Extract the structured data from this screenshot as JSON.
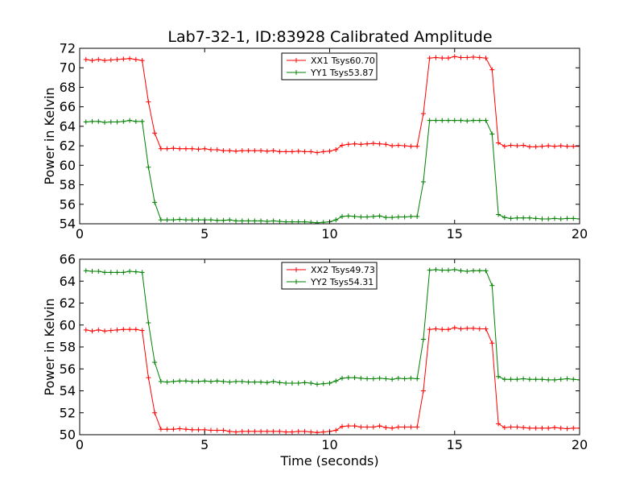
{
  "figure": {
    "title": "Lab7-32-1, ID:83928 Calibrated Amplitude"
  },
  "chart_data": [
    {
      "type": "line",
      "title": "Lab7-32-1, ID:83928 Calibrated Amplitude",
      "xlabel": "",
      "ylabel": "Power in Kelvin",
      "xlim": [
        0,
        20
      ],
      "ylim": [
        54,
        72
      ],
      "xticks": [
        0,
        5,
        10,
        15,
        20
      ],
      "yticks": [
        54,
        56,
        58,
        60,
        62,
        64,
        66,
        68,
        70,
        72
      ],
      "grid": false,
      "legend_position": "top-center",
      "x": [
        0.25,
        0.5,
        0.75,
        1.0,
        1.25,
        1.5,
        1.75,
        2.0,
        2.25,
        2.5,
        2.75,
        3.0,
        3.25,
        3.5,
        3.75,
        4.0,
        4.25,
        4.5,
        4.75,
        5.0,
        5.25,
        5.5,
        5.75,
        6.0,
        6.25,
        6.5,
        6.75,
        7.0,
        7.25,
        7.5,
        7.75,
        8.0,
        8.25,
        8.5,
        8.75,
        9.0,
        9.25,
        9.5,
        9.75,
        10.0,
        10.25,
        10.5,
        10.75,
        11.0,
        11.25,
        11.5,
        11.75,
        12.0,
        12.25,
        12.5,
        12.75,
        13.0,
        13.25,
        13.5,
        13.75,
        14.0,
        14.25,
        14.5,
        14.75,
        15.0,
        15.25,
        15.5,
        15.75,
        16.0,
        16.25,
        16.5,
        16.75,
        17.0,
        17.25,
        17.5,
        17.75,
        18.0,
        18.25,
        18.5,
        18.75,
        19.0,
        19.25,
        19.5,
        19.75,
        20.0
      ],
      "series": [
        {
          "name": "XX1 Tsys60.70",
          "color": "#ff0000",
          "values": [
            70.85,
            70.75,
            70.85,
            70.75,
            70.8,
            70.85,
            70.9,
            70.95,
            70.85,
            70.75,
            66.5,
            63.3,
            61.7,
            61.7,
            61.75,
            61.7,
            61.7,
            61.7,
            61.65,
            61.7,
            61.6,
            61.6,
            61.5,
            61.5,
            61.45,
            61.5,
            61.5,
            61.5,
            61.5,
            61.45,
            61.5,
            61.4,
            61.4,
            61.4,
            61.45,
            61.4,
            61.4,
            61.3,
            61.4,
            61.45,
            61.6,
            62.05,
            62.15,
            62.2,
            62.15,
            62.2,
            62.25,
            62.2,
            62.15,
            62.0,
            62.05,
            62.0,
            61.95,
            61.95,
            65.3,
            71.0,
            71.05,
            71.0,
            71.0,
            71.15,
            71.05,
            71.05,
            71.1,
            71.05,
            71.0,
            69.8,
            62.3,
            61.95,
            62.05,
            62.0,
            62.05,
            61.9,
            61.9,
            61.95,
            62.0,
            61.95,
            62.0,
            61.95,
            61.95,
            61.95
          ]
        },
        {
          "name": "YY1 Tsys53.87",
          "color": "#008000",
          "values": [
            64.45,
            64.5,
            64.5,
            64.4,
            64.45,
            64.45,
            64.5,
            64.6,
            64.5,
            64.5,
            59.8,
            56.2,
            54.4,
            54.4,
            54.4,
            54.45,
            54.4,
            54.4,
            54.4,
            54.4,
            54.4,
            54.35,
            54.35,
            54.4,
            54.3,
            54.3,
            54.3,
            54.3,
            54.3,
            54.25,
            54.3,
            54.25,
            54.2,
            54.2,
            54.2,
            54.2,
            54.15,
            54.1,
            54.15,
            54.2,
            54.4,
            54.75,
            54.8,
            54.75,
            54.7,
            54.7,
            54.75,
            54.8,
            54.65,
            54.65,
            54.7,
            54.7,
            54.75,
            54.75,
            58.3,
            64.6,
            64.6,
            64.6,
            64.6,
            64.6,
            64.6,
            64.55,
            64.6,
            64.6,
            64.6,
            63.2,
            54.95,
            54.65,
            54.55,
            54.6,
            54.6,
            54.6,
            54.55,
            54.5,
            54.5,
            54.55,
            54.5,
            54.55,
            54.55,
            54.5
          ]
        }
      ]
    },
    {
      "type": "line",
      "title": "",
      "xlabel": "Time (seconds)",
      "ylabel": "Power in Kelvin",
      "xlim": [
        0,
        20
      ],
      "ylim": [
        50,
        66
      ],
      "xticks": [
        0,
        5,
        10,
        15,
        20
      ],
      "yticks": [
        50,
        52,
        54,
        56,
        58,
        60,
        62,
        64,
        66
      ],
      "grid": false,
      "legend_position": "top-center",
      "x": [
        0.25,
        0.5,
        0.75,
        1.0,
        1.25,
        1.5,
        1.75,
        2.0,
        2.25,
        2.5,
        2.75,
        3.0,
        3.25,
        3.5,
        3.75,
        4.0,
        4.25,
        4.5,
        4.75,
        5.0,
        5.25,
        5.5,
        5.75,
        6.0,
        6.25,
        6.5,
        6.75,
        7.0,
        7.25,
        7.5,
        7.75,
        8.0,
        8.25,
        8.5,
        8.75,
        9.0,
        9.25,
        9.5,
        9.75,
        10.0,
        10.25,
        10.5,
        10.75,
        11.0,
        11.25,
        11.5,
        11.75,
        12.0,
        12.25,
        12.5,
        12.75,
        13.0,
        13.25,
        13.5,
        13.75,
        14.0,
        14.25,
        14.5,
        14.75,
        15.0,
        15.25,
        15.5,
        15.75,
        16.0,
        16.25,
        16.5,
        16.75,
        17.0,
        17.25,
        17.5,
        17.75,
        18.0,
        18.25,
        18.5,
        18.75,
        19.0,
        19.25,
        19.5,
        19.75,
        20.0
      ],
      "series": [
        {
          "name": "XX2 Tsys49.73",
          "color": "#ff0000",
          "values": [
            59.55,
            59.45,
            59.55,
            59.45,
            59.5,
            59.55,
            59.6,
            59.6,
            59.6,
            59.5,
            55.2,
            52.0,
            50.5,
            50.5,
            50.5,
            50.55,
            50.5,
            50.45,
            50.45,
            50.45,
            50.4,
            50.4,
            50.4,
            50.3,
            50.25,
            50.3,
            50.3,
            50.3,
            50.3,
            50.3,
            50.3,
            50.3,
            50.25,
            50.25,
            50.3,
            50.3,
            50.25,
            50.2,
            50.25,
            50.3,
            50.4,
            50.75,
            50.8,
            50.8,
            50.7,
            50.7,
            50.7,
            50.8,
            50.65,
            50.6,
            50.7,
            50.7,
            50.7,
            50.7,
            54.0,
            59.6,
            59.65,
            59.6,
            59.6,
            59.75,
            59.65,
            59.7,
            59.7,
            59.65,
            59.65,
            58.35,
            51.0,
            50.65,
            50.7,
            50.7,
            50.65,
            50.6,
            50.6,
            50.6,
            50.6,
            50.65,
            50.6,
            50.55,
            50.6,
            50.6
          ]
        },
        {
          "name": "YY2 Tsys54.31",
          "color": "#008000",
          "values": [
            64.95,
            64.9,
            64.9,
            64.8,
            64.8,
            64.8,
            64.8,
            64.9,
            64.85,
            64.8,
            60.2,
            56.6,
            54.85,
            54.8,
            54.85,
            54.9,
            54.9,
            54.85,
            54.85,
            54.9,
            54.85,
            54.9,
            54.85,
            54.8,
            54.85,
            54.85,
            54.8,
            54.8,
            54.8,
            54.75,
            54.85,
            54.75,
            54.7,
            54.7,
            54.7,
            54.75,
            54.7,
            54.6,
            54.65,
            54.7,
            54.9,
            55.15,
            55.2,
            55.2,
            55.15,
            55.1,
            55.1,
            55.15,
            55.1,
            55.05,
            55.15,
            55.1,
            55.15,
            55.1,
            58.7,
            65.0,
            65.05,
            65.0,
            65.0,
            65.05,
            64.95,
            64.9,
            64.95,
            64.95,
            64.95,
            63.6,
            55.3,
            55.05,
            55.05,
            55.05,
            55.1,
            55.05,
            55.05,
            55.05,
            55.0,
            55.0,
            55.05,
            55.1,
            55.05,
            55.0
          ]
        }
      ]
    }
  ]
}
